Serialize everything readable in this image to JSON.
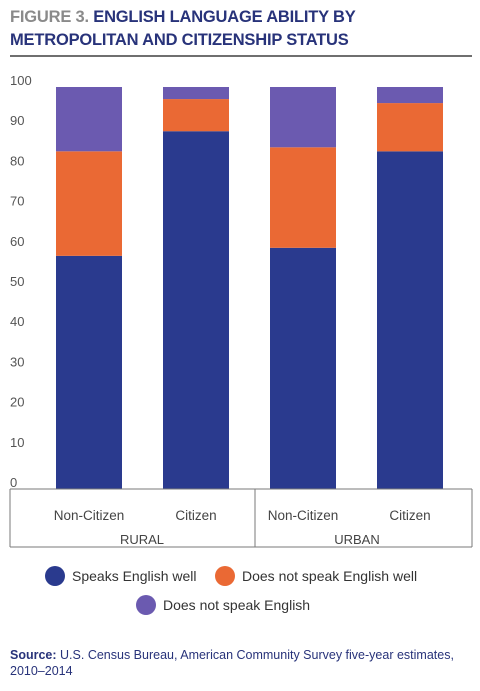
{
  "header": {
    "figure_label": "FIGURE 3.",
    "title": "ENGLISH LANGUAGE ABILITY BY METROPOLITAN AND CITIZENSHIP STATUS"
  },
  "source": {
    "label": "Source:",
    "text": "U.S. Census Bureau, American Community Survey five-year estimates, 2010–2014"
  },
  "chart_data": {
    "type": "bar",
    "stacked": true,
    "categories": [
      "Non-Citizen",
      "Citizen",
      "Non-Citizen",
      "Citizen"
    ],
    "groups": [
      {
        "label": "RURAL",
        "categories": [
          "Non-Citizen",
          "Citizen"
        ]
      },
      {
        "label": "URBAN",
        "categories": [
          "Non-Citizen",
          "Citizen"
        ]
      }
    ],
    "series": [
      {
        "name": "Speaks English well",
        "color": "#2a3a8e",
        "values": [
          58,
          89,
          60,
          84
        ]
      },
      {
        "name": "Does not speak English well",
        "color": "#ea6934",
        "values": [
          26,
          8,
          25,
          12
        ]
      },
      {
        "name": "Does not speak English",
        "color": "#6b5ab0",
        "values": [
          16,
          3,
          15,
          4
        ]
      }
    ],
    "ylim": [
      0,
      100
    ],
    "yticks": [
      "0",
      "10",
      "20",
      "30",
      "40",
      "50",
      "60",
      "70",
      "80",
      "90",
      "100"
    ],
    "grid": false,
    "legend_position": "bottom"
  }
}
